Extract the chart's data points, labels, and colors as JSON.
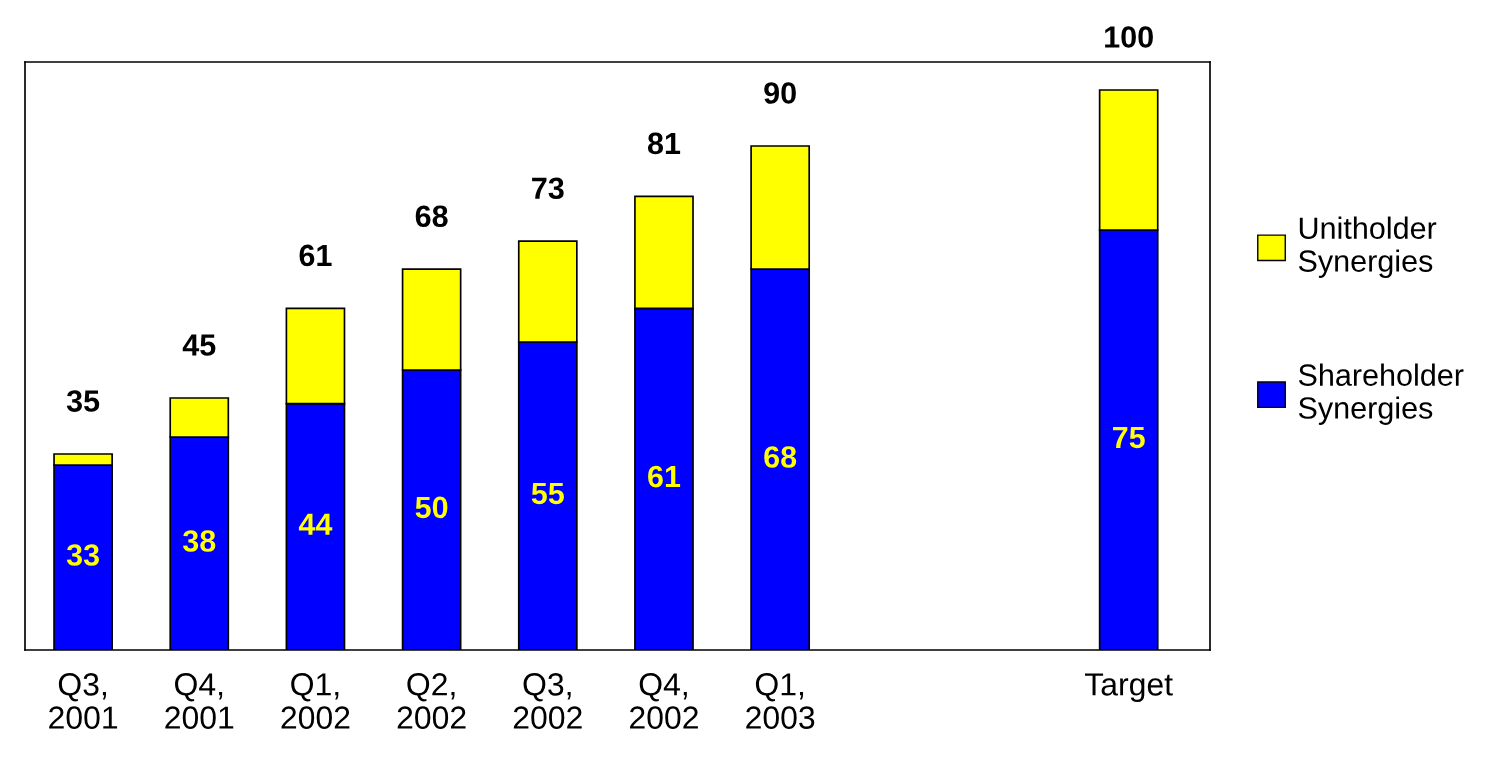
{
  "chart_data": {
    "type": "bar",
    "stacked": true,
    "categories": [
      "Q3,\n2001",
      "Q4,\n2001",
      "Q1,\n2002",
      "Q2,\n2002",
      "Q3,\n2002",
      "Q4,\n2002",
      "Q1,\n2003",
      null,
      null,
      "Target"
    ],
    "series": [
      {
        "name": "Shareholder\nSynergies",
        "color": "#0000ff",
        "values": [
          33,
          38,
          44,
          50,
          55,
          61,
          68,
          null,
          null,
          75
        ],
        "value_labels": [
          "33",
          "38",
          "44",
          "50",
          "55",
          "61",
          "68",
          null,
          null,
          "75"
        ]
      },
      {
        "name": "Unitholder\nSynergies",
        "color": "#ffff00",
        "values": [
          2,
          7,
          17,
          18,
          18,
          20,
          22,
          null,
          null,
          25
        ]
      }
    ],
    "totals": [
      "35",
      "45",
      "61",
      "68",
      "73",
      "81",
      "90",
      null,
      null,
      "100"
    ],
    "legend": "right",
    "tick_labels": "x"
  }
}
